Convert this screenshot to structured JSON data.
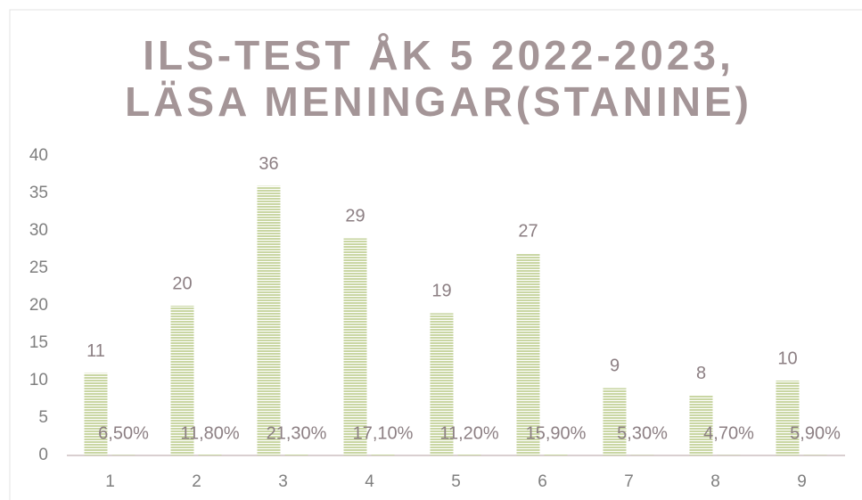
{
  "chart_data": {
    "type": "bar",
    "title": [
      "ILS-TEST ÅK 5 2022-2023,",
      "LÄSA MENINGAR(STANINE)"
    ],
    "categories": [
      "1",
      "2",
      "3",
      "4",
      "5",
      "6",
      "7",
      "8",
      "9"
    ],
    "series": [
      {
        "color": "#c9d6a3",
        "values": [
          11,
          20,
          36,
          29,
          19,
          27,
          9,
          8,
          10
        ]
      },
      {
        "color": "#c9d6a3",
        "values": [
          0.065,
          0.118,
          0.213,
          0.171,
          0.112,
          0.159,
          0.053,
          0.047,
          0.059
        ],
        "value_labels": [
          "6,50%",
          "11,80%",
          "21,30%",
          "17,10%",
          "11,20%",
          "15,90%",
          "5,30%",
          "4,70%",
          "5,90%"
        ]
      }
    ],
    "ylim": [
      0,
      40
    ],
    "yticks": [
      0,
      5,
      10,
      15,
      20,
      25,
      30,
      35,
      40
    ],
    "grid": false
  }
}
